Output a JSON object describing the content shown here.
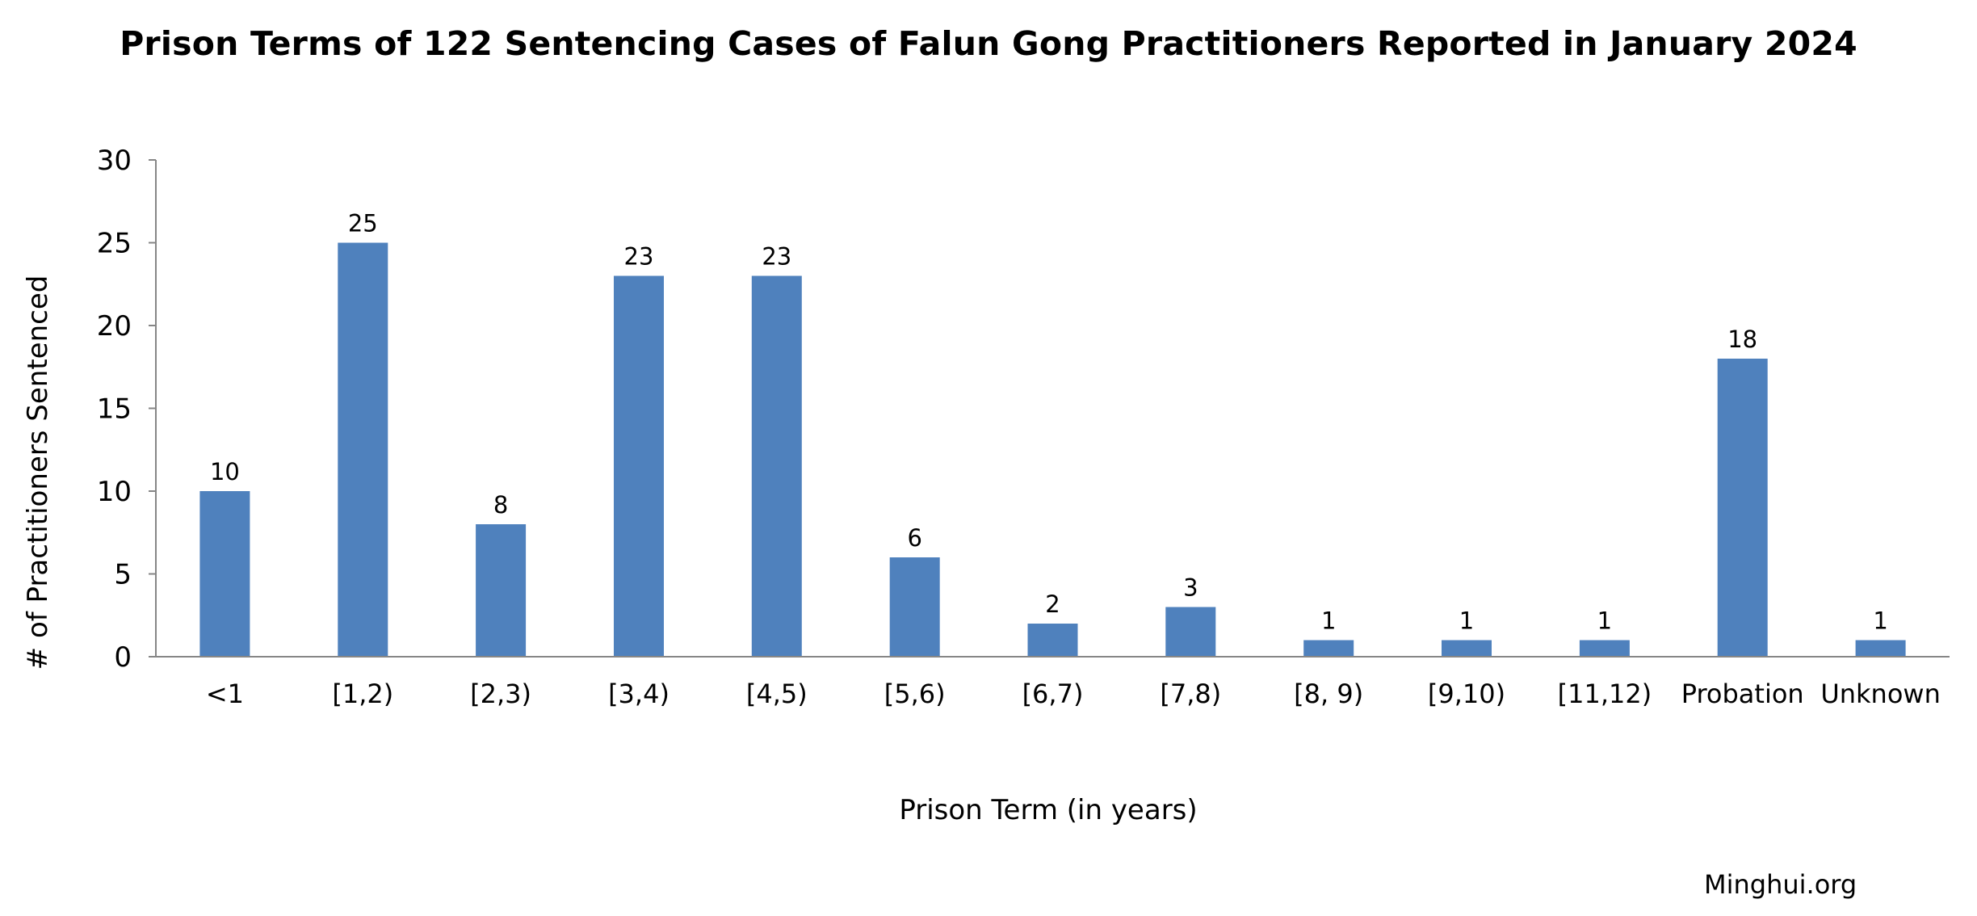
{
  "chart_data": {
    "type": "bar",
    "title": "Prison Terms of 122 Sentencing Cases of Falun Gong Practitioners Reported in January 2024",
    "xlabel": "Prison Term (in years)",
    "ylabel": "# of Practitioners Sentenced",
    "categories": [
      "<1",
      "[1,2)",
      "[2,3)",
      "[3,4)",
      "[4,5)",
      "[5,6)",
      "[6,7)",
      "[7,8)",
      "[8, 9)",
      "[9,10)",
      "[11,12)",
      "Probation",
      "Unknown"
    ],
    "values": [
      10,
      25,
      8,
      23,
      23,
      6,
      2,
      3,
      1,
      1,
      1,
      18,
      1
    ],
    "ylim": [
      0,
      30
    ],
    "yticks": [
      0,
      5,
      10,
      15,
      20,
      25,
      30
    ],
    "grid": false,
    "legend": "none",
    "data_labels": true,
    "bar_color": "#4f81bd",
    "axis_color": "#868686"
  },
  "footer": {
    "source": "Minghui.org"
  }
}
